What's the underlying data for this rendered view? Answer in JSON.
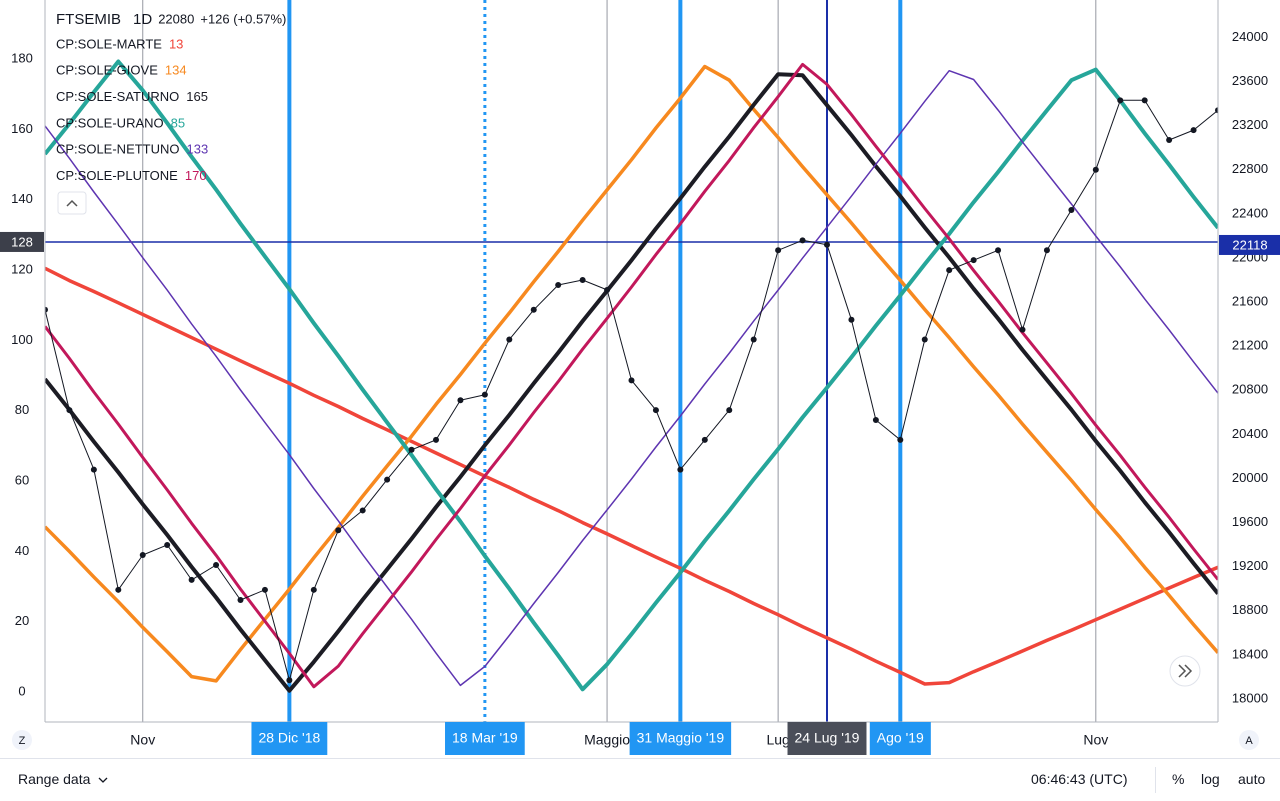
{
  "chart_data": {
    "type": "line",
    "symbol": "FTSEMIB",
    "interval": "1D",
    "last": 22080,
    "change": "+126 (+0.57%)",
    "categories": [
      null,
      null,
      null,
      null,
      "Nov",
      null,
      null,
      null,
      null,
      null,
      "28 Dic '18",
      null,
      null,
      null,
      null,
      null,
      null,
      null,
      "18 Mar '19",
      null,
      null,
      null,
      null,
      "Maggio",
      null,
      null,
      "31 Maggio '19",
      null,
      null,
      null,
      "Lug",
      null,
      "24 Lug '19",
      null,
      null,
      "Ago '19",
      null,
      null,
      null,
      null,
      null,
      null,
      null,
      "Nov",
      null,
      null,
      null,
      null,
      null
    ],
    "ylim": [
      -8.5,
      196.8
    ],
    "yticks": [
      0,
      20,
      40,
      60,
      80,
      100,
      120,
      140,
      160,
      180
    ],
    "y2lim": [
      17791,
      24340
    ],
    "y2ticks": [
      18000,
      18400,
      18800,
      19200,
      19600,
      20000,
      20400,
      20800,
      21200,
      21600,
      22000,
      22400,
      22800,
      23200,
      23600,
      24000
    ],
    "grid": "x",
    "series": [
      {
        "name": "FTSEMIB",
        "color": "#131722",
        "axis": "y2",
        "width": 1,
        "markers": true,
        "values": [
          21530,
          20620,
          20080,
          18990,
          19306,
          19397,
          19080,
          19215,
          18898,
          18990,
          18170,
          18990,
          19530,
          19710,
          19990,
          20260,
          20350,
          20710,
          20760,
          21260,
          21530,
          21755,
          21800,
          21710,
          20890,
          20620,
          20080,
          20350,
          20620,
          21260,
          22070,
          22160,
          22120,
          21440,
          20530,
          20350,
          21260,
          21890,
          21980,
          22070,
          21350,
          22070,
          22435,
          22800,
          23430,
          23430,
          23070,
          23160,
          23340
        ]
      },
      {
        "name": "CP:SOLE-MARTE",
        "last": 13,
        "color": "#f0453a",
        "width": 3.5,
        "values": [
          120.5,
          117,
          113.9,
          110.7,
          107.4,
          104.1,
          100.8,
          97.5,
          94.2,
          91,
          87.8,
          84.4,
          81.2,
          77.8,
          74.6,
          71.3,
          68,
          64.7,
          61.4,
          58.2,
          54.8,
          51.6,
          48.2,
          45,
          41.7,
          38.4,
          35.2,
          31.8,
          28.6,
          25.2,
          22,
          18.6,
          15.4,
          12.2,
          8.8,
          5.6,
          2.3,
          2.7,
          5.8,
          8.7,
          11.7,
          14.7,
          17.6,
          20.6,
          23.6,
          26.6,
          29.6,
          32.6,
          35.5
        ]
      },
      {
        "name": "CP:SOLE-GIOVE",
        "last": 134,
        "color": "#f7891f",
        "width": 3.5,
        "values": [
          47,
          40,
          32.7,
          25.7,
          18.4,
          11.5,
          4.4,
          3.2,
          12.1,
          20.7,
          29.3,
          38.2,
          46.8,
          55.7,
          64.3,
          72.8,
          81.8,
          90.3,
          99.2,
          107.8,
          116.7,
          125.3,
          134.2,
          142.8,
          151.4,
          160.4,
          168.9,
          177.9,
          174,
          165.7,
          157.7,
          149.4,
          141.4,
          133.4,
          125.1,
          117.1,
          108.8,
          100.8,
          92.5,
          84.5,
          76.2,
          68.2,
          60.2,
          51.9,
          43.9,
          35.5,
          27.5,
          19.2,
          11.2
        ]
      },
      {
        "name": "CP:SOLE-SATURNO",
        "last": 165,
        "color": "#1c1c24",
        "width": 4,
        "values": [
          89,
          80.3,
          71.2,
          62.5,
          53.4,
          44.7,
          35.6,
          26.9,
          17.8,
          9.1,
          0.4,
          8.6,
          17.3,
          26.3,
          34.9,
          43.6,
          52.6,
          61.2,
          70.2,
          78.8,
          87.8,
          96.5,
          105.5,
          114.1,
          122.8,
          131.8,
          140.4,
          149.4,
          158,
          167,
          175.7,
          175.4,
          166.9,
          158.4,
          149.5,
          141,
          132.1,
          123.6,
          114.7,
          106.2,
          97.3,
          88.8,
          80.3,
          71.4,
          62.9,
          54,
          45.5,
          36.6,
          28
        ]
      },
      {
        "name": "CP:SOLE-URANO",
        "last": 85,
        "color": "#26a69a",
        "width": 4,
        "values": [
          153,
          161.6,
          170.6,
          179.3,
          171.1,
          161.8,
          152.2,
          142.9,
          133.2,
          123.9,
          114.6,
          104.9,
          95.6,
          86,
          76.7,
          67.4,
          57.7,
          48.5,
          38.7,
          29.4,
          19.7,
          10.4,
          0.8,
          7.9,
          16.5,
          25.4,
          34,
          43,
          51.6,
          60.5,
          69.1,
          78.1,
          86.6,
          95.2,
          104.2,
          112.8,
          121.7,
          130.3,
          139.3,
          147.9,
          156.8,
          165.4,
          174,
          177,
          168.2,
          158.9,
          150,
          140.8,
          132
        ]
      },
      {
        "name": "CP:SOLE-NETTUNO",
        "last": 133,
        "color": "#5e35b1",
        "width": 1.5,
        "values": [
          161,
          151.8,
          142.2,
          133,
          123.5,
          114.3,
          104.7,
          95.5,
          85.9,
          76.7,
          67.5,
          57.9,
          48.7,
          39.1,
          29.9,
          20.7,
          11.1,
          1.9,
          7.3,
          16.1,
          25.2,
          34,
          43.1,
          51.8,
          60.6,
          69.7,
          78.5,
          87.6,
          96.4,
          105.5,
          114.3,
          123.4,
          132.2,
          141,
          150.1,
          158.9,
          168,
          176.7,
          174.2,
          165.5,
          156.4,
          147.6,
          138.8,
          129.7,
          120.9,
          111.8,
          103,
          93.9,
          85
        ]
      },
      {
        "name": "CP:SOLE-PLUTONE",
        "last": 170,
        "color": "#c2185b",
        "width": 3,
        "values": [
          104,
          94.9,
          85.3,
          76.2,
          66.7,
          57.5,
          48,
          38.9,
          29.3,
          20.2,
          11,
          1.5,
          7.4,
          16.6,
          25.4,
          34.2,
          43.4,
          52.2,
          61.5,
          70.3,
          79.5,
          88.3,
          97.5,
          106.3,
          115.2,
          124.4,
          133.2,
          142.4,
          151.2,
          160.5,
          169.3,
          178.5,
          172.8,
          164.2,
          155.2,
          146.5,
          137.5,
          128.9,
          119.9,
          111.2,
          102.2,
          93.6,
          84.9,
          75.9,
          67.3,
          58.3,
          49.7,
          40.7,
          32
        ]
      }
    ],
    "hline": {
      "value": 128,
      "y2value": 22118,
      "color": "#1a2fa8"
    },
    "vlines": [
      {
        "at": 10,
        "color": "#2196f3",
        "width": 4
      },
      {
        "at": 18,
        "color": "#2196f3",
        "width": 3,
        "dash": true
      },
      {
        "at": 26,
        "color": "#2196f3",
        "width": 4
      },
      {
        "at": 32,
        "color": "#1a2fa8",
        "width": 2,
        "label_bg": "#4a4e59"
      },
      {
        "at": 35,
        "color": "#2196f3",
        "width": 4
      }
    ]
  },
  "toolbar": {
    "left_button": "Z",
    "right_button": "A",
    "range": "Range data",
    "time": "06:46:43 (UTC)",
    "percent": "%",
    "log": "log",
    "auto": "auto"
  }
}
